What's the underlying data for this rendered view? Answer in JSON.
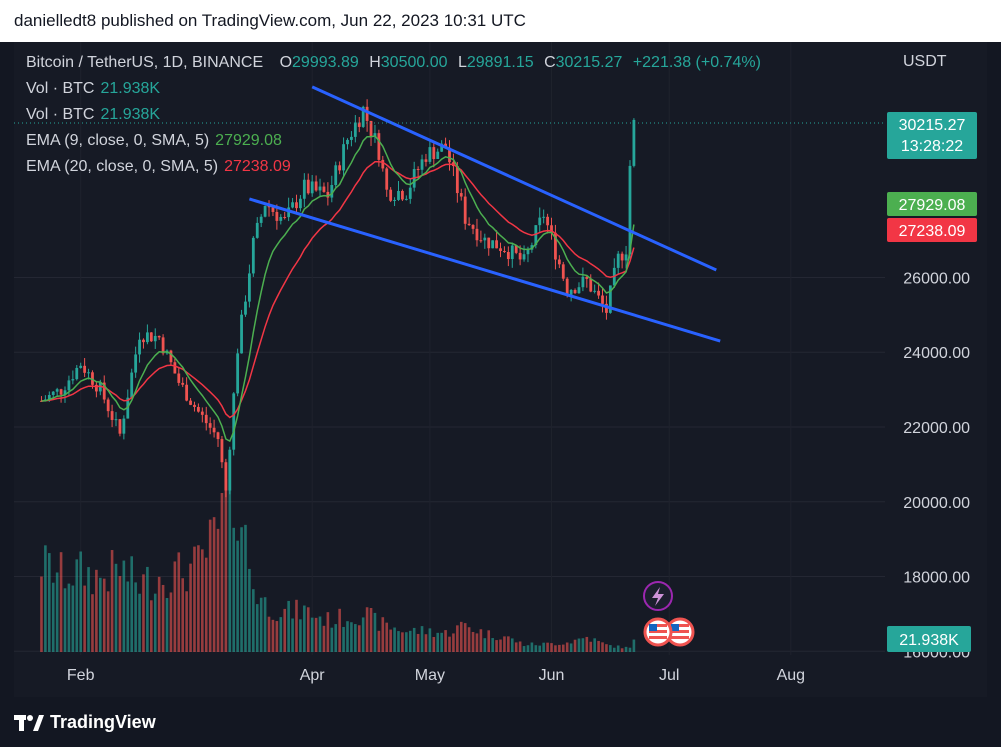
{
  "header": {
    "text": "danielledt8 published on TradingView.com, Jun 22, 2023 10:31 UTC"
  },
  "legend": {
    "symbol": "Bitcoin / TetherUS, 1D, BINANCE",
    "open_label": "O",
    "open": "29993.89",
    "high_label": "H",
    "high": "30500.00",
    "low_label": "L",
    "low": "29891.15",
    "close_label": "C",
    "close": "30215.27",
    "change": "+221.38 (+0.74%)",
    "vol1_label": "Vol · BTC",
    "vol1": "21.938K",
    "vol2_label": "Vol · BTC",
    "vol2": "21.938K",
    "ema9_label": "EMA (9, close, 0, SMA, 5)",
    "ema9": "27929.08",
    "ema20_label": "EMA (20, close, 0, SMA, 5)",
    "ema20": "27238.09"
  },
  "price_axis": {
    "currency": "USDT",
    "last_price": "30215.27",
    "countdown": "13:28:22",
    "ema9_tag": "27929.08",
    "ema20_tag": "27238.09",
    "volume_tag": "21.938K"
  },
  "footer": {
    "brand": "TradingView"
  },
  "colors": {
    "up": "#26a69a",
    "down": "#ef5350",
    "ema9": "#4caf50",
    "ema20": "#f23645",
    "trendline": "#2962ff",
    "background": "#161a25"
  },
  "icons": [
    "tradingview-logo-icon",
    "lightning-event-icon",
    "us-flag-event-icon"
  ],
  "chart_data": {
    "type": "candlestick",
    "title": "Bitcoin / TetherUS, 1D, BINANCE",
    "x_tick_labels": [
      "Feb",
      "Apr",
      "May",
      "Jun",
      "Jul",
      "Aug"
    ],
    "y_tick_labels": [
      "16000.00",
      "18000.00",
      "20000.00",
      "22000.00",
      "24000.00",
      "26000.00"
    ],
    "ylim": [
      15900,
      32300
    ],
    "grid": true,
    "series": [
      {
        "name": "Close (approx.)",
        "x": [
          "2023-01-22",
          "2023-01-27",
          "2023-02-01",
          "2023-02-06",
          "2023-02-11",
          "2023-02-16",
          "2023-02-21",
          "2023-02-26",
          "2023-03-03",
          "2023-03-08",
          "2023-03-10",
          "2023-03-13",
          "2023-03-17",
          "2023-03-20",
          "2023-03-25",
          "2023-03-30",
          "2023-04-05",
          "2023-04-10",
          "2023-04-14",
          "2023-04-18",
          "2023-04-20",
          "2023-04-25",
          "2023-04-30",
          "2023-05-05",
          "2023-05-10",
          "2023-05-15",
          "2023-05-20",
          "2023-05-25",
          "2023-05-30",
          "2023-06-05",
          "2023-06-10",
          "2023-06-15",
          "2023-06-18",
          "2023-06-20",
          "2023-06-21",
          "2023-06-22"
        ],
        "values": [
          22700,
          23000,
          23700,
          23000,
          21800,
          24500,
          24400,
          23200,
          22400,
          21700,
          20300,
          24100,
          26900,
          28000,
          27500,
          28400,
          28200,
          29700,
          30500,
          29400,
          28300,
          28300,
          29300,
          29500,
          27600,
          27000,
          26800,
          26400,
          27700,
          25700,
          25900,
          25100,
          26500,
          26800,
          29000,
          30215
        ]
      },
      {
        "name": "Volume",
        "values": [
          20.5,
          17.9,
          18.4,
          17.1,
          19.1,
          15.6,
          17.4,
          18.2,
          19.8,
          27.4,
          35.1,
          35.9,
          15.2,
          11.0,
          9.2,
          9.5,
          7.3,
          8.0,
          9.0,
          6.6,
          6.0,
          4.8,
          4.9,
          4.3,
          6.3,
          4.2,
          3.6,
          1.7,
          1.8,
          2.2,
          3.4,
          1.6,
          1.2,
          1.0,
          1.3,
          2.4
        ]
      }
    ],
    "indicators": [
      {
        "name": "EMA (9, close, 0, SMA, 5)",
        "value": "27929.08"
      },
      {
        "name": "EMA (20, close, 0, SMA, 5)",
        "value": "27238.09"
      }
    ],
    "trendlines": [
      {
        "from": [
          "2023-04-01",
          31100
        ],
        "to": [
          "2023-07-13",
          26200
        ]
      },
      {
        "from": [
          "2023-03-16",
          28100
        ],
        "to": [
          "2023-07-14",
          24300
        ]
      }
    ]
  }
}
